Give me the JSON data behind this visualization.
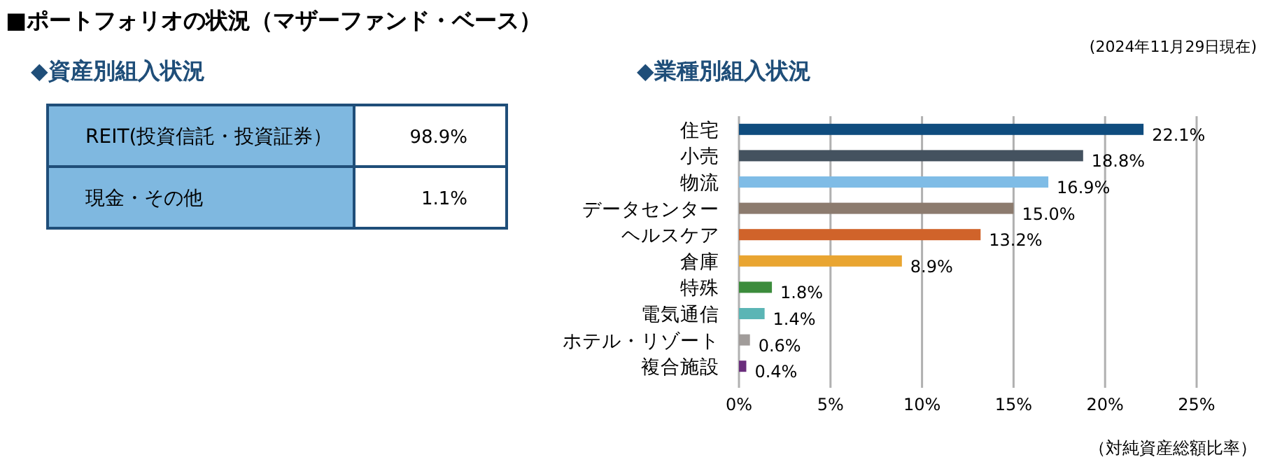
{
  "chart_data": [
    {
      "type": "other",
      "title": "■ポートフォリオの状況（マザーファンド・ベース）",
      "subtitle": "◆資産別組入状況",
      "annotations": [
        "REIT(投資信託・投資証券）",
        "98.9%",
        "現金・その他",
        "1.1%"
      ]
    },
    {
      "type": "bar",
      "orientation": "horizontal",
      "title": "◆業種別組入状況",
      "annotations": [
        "(2024年11月29日現在)",
        "（対純資産総額比率）"
      ],
      "categories": [
        "住宅",
        "小売",
        "物流",
        "データセンター",
        "ヘルスケア",
        "倉庫",
        "特殊",
        "電気通信",
        "ホテル・リゾート",
        "複合施設"
      ],
      "values": [
        22.1,
        18.8,
        16.9,
        15.0,
        13.2,
        8.9,
        1.8,
        1.4,
        0.6,
        0.4
      ],
      "value_labels": [
        "22.1%",
        "18.8%",
        "16.9%",
        "15.0%",
        "13.2%",
        "8.9%",
        "1.8%",
        "1.4%",
        "0.6%",
        "0.4%"
      ],
      "colors": [
        "#0f4c7e",
        "#44525f",
        "#7fbce6",
        "#8c7b6e",
        "#d0632a",
        "#e9a531",
        "#3c8c3c",
        "#5bb5b5",
        "#a19c9a",
        "#6a2e7c"
      ],
      "xlim": [
        0,
        25
      ],
      "xticks": [
        {
          "value": 0,
          "label": "0%"
        },
        {
          "value": 5,
          "label": "5%"
        },
        {
          "value": 10,
          "label": "10%"
        },
        {
          "value": 15,
          "label": "15%"
        },
        {
          "value": 20,
          "label": "20%"
        },
        {
          "value": 25,
          "label": "25%"
        }
      ],
      "grid": "x"
    }
  ]
}
